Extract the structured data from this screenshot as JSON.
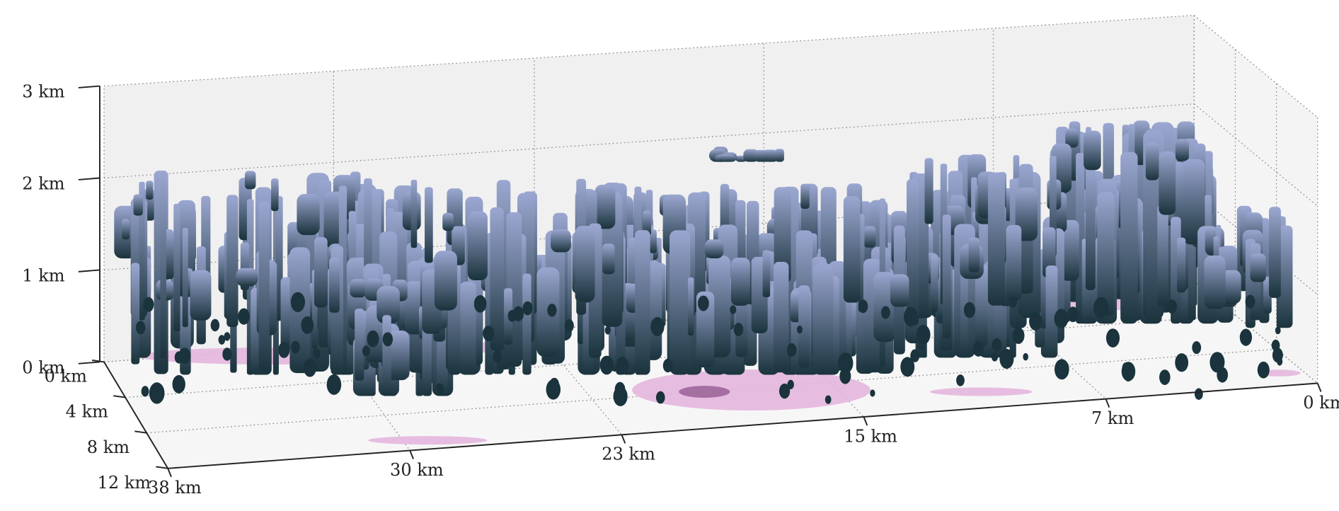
{
  "chart_data": {
    "type": "isosurface3d",
    "xlim": [
      38,
      0
    ],
    "ylim": [
      0,
      12
    ],
    "zlim": [
      0,
      3
    ],
    "xticks": [
      {
        "value": 38,
        "label": "38 km"
      },
      {
        "value": 30,
        "label": "30 km"
      },
      {
        "value": 23,
        "label": "23 km"
      },
      {
        "value": 15,
        "label": "15 km"
      },
      {
        "value": 7,
        "label": "7 km"
      },
      {
        "value": 0,
        "label": "0 km"
      }
    ],
    "yticks": [
      {
        "value": 0,
        "label": "0 km"
      },
      {
        "value": 4,
        "label": "4 km"
      },
      {
        "value": 8,
        "label": "8 km"
      },
      {
        "value": 12,
        "label": "12 km"
      }
    ],
    "zticks": [
      {
        "value": 0,
        "label": "0 km"
      },
      {
        "value": 1,
        "label": "1 km"
      },
      {
        "value": 2,
        "label": "2 km"
      },
      {
        "value": 3,
        "label": "3 km"
      }
    ],
    "grid": true,
    "surface_colors": [
      "#9ba7d1",
      "#1a333c"
    ],
    "floor_color": "#e4b7de",
    "pane_color": "#f0f0f0"
  }
}
